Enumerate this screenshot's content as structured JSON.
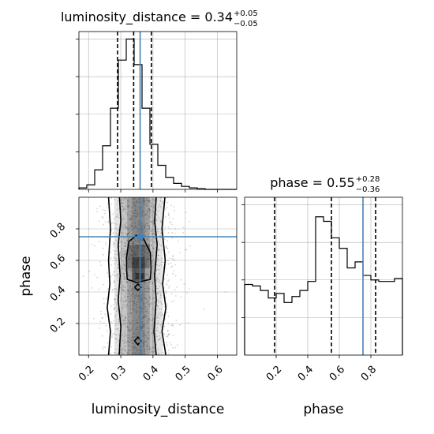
{
  "chart_data": {
    "type": "corner",
    "parameters": [
      "luminosity_distance",
      "phase"
    ],
    "truths": {
      "luminosity_distance": 0.36,
      "phase": 0.75
    },
    "colors": {
      "truth": "#4682b4",
      "hist": "#000000",
      "grid": "#b0b0b0",
      "samples": "#808080"
    },
    "panels": [
      {
        "id": "hist-luminosity_distance",
        "type": "step-histogram",
        "parameter": "luminosity_distance",
        "title": {
          "main": "luminosity_distance = 0.34",
          "sup": "+0.05",
          "sub": "−0.05"
        },
        "xlim": [
          0.17,
          0.66
        ],
        "ylim": [
          0,
          1.05
        ],
        "xticks": [
          0.2,
          0.3,
          0.4,
          0.5,
          0.6
        ],
        "bin_edges": [
          0.17,
          0.1945,
          0.219,
          0.2435,
          0.268,
          0.2925,
          0.317,
          0.3415,
          0.366,
          0.3905,
          0.415,
          0.4395,
          0.464,
          0.4885,
          0.513,
          0.5375,
          0.562,
          0.5865,
          0.611,
          0.6355,
          0.66
        ],
        "values": [
          0.01,
          0.03,
          0.13,
          0.29,
          0.54,
          0.86,
          1.0,
          0.83,
          0.54,
          0.3,
          0.16,
          0.08,
          0.04,
          0.02,
          0.01,
          0.005,
          0.0,
          0.0,
          0.0,
          0.0
        ],
        "quantiles": [
          0.29,
          0.34,
          0.395
        ],
        "truth": 0.36
      },
      {
        "id": "hist-phase",
        "type": "step-histogram",
        "parameter": "phase",
        "title": {
          "main": "phase = 0.55",
          "sup": "+0.28",
          "sub": "−0.36"
        },
        "xlim": [
          0.0,
          1.0
        ],
        "ylim": [
          0,
          1.05
        ],
        "xticks": [
          0.2,
          0.4,
          0.6,
          0.8
        ],
        "xticklabels": [
          "0.2",
          "0.4",
          "0.6",
          "0.8"
        ],
        "xlabel": "phase",
        "bin_edges": [
          0.0,
          0.05,
          0.1,
          0.15,
          0.2,
          0.25,
          0.3,
          0.35,
          0.4,
          0.45,
          0.5,
          0.55,
          0.6,
          0.65,
          0.7,
          0.75,
          0.8,
          0.85,
          0.9,
          0.95,
          1.0
        ],
        "values": [
          0.47,
          0.46,
          0.43,
          0.38,
          0.41,
          0.35,
          0.39,
          0.43,
          0.49,
          0.92,
          0.89,
          0.78,
          0.71,
          0.58,
          0.62,
          0.53,
          0.5,
          0.49,
          0.49,
          0.51
        ],
        "quantiles": [
          0.19,
          0.55,
          0.83
        ],
        "truth": 0.75
      },
      {
        "id": "scatter-2d",
        "type": "2d-density",
        "x_parameter": "luminosity_distance",
        "y_parameter": "phase",
        "xlim": [
          0.17,
          0.66
        ],
        "ylim": [
          0.0,
          1.0
        ],
        "xticks": [
          0.2,
          0.3,
          0.4,
          0.5,
          0.6
        ],
        "xticklabels": [
          "0.2",
          "0.3",
          "0.4",
          "0.5",
          "0.6"
        ],
        "yticks": [
          0.2,
          0.4,
          0.6,
          0.8
        ],
        "yticklabels": [
          "0.2",
          "0.4",
          "0.6",
          "0.8"
        ],
        "xlabel": "luminosity_distance",
        "ylabel": "phase",
        "truth": [
          0.36,
          0.75
        ],
        "contours": [
          [
            [
              0.262,
              0.0
            ],
            [
              0.268,
              0.15
            ],
            [
              0.258,
              0.3
            ],
            [
              0.266,
              0.45
            ],
            [
              0.262,
              0.6
            ],
            [
              0.268,
              0.8
            ],
            [
              0.262,
              1.0
            ]
          ],
          [
            [
              0.44,
              0.0
            ],
            [
              0.428,
              0.15
            ],
            [
              0.44,
              0.3
            ],
            [
              0.43,
              0.45
            ],
            [
              0.438,
              0.6
            ],
            [
              0.428,
              0.8
            ],
            [
              0.437,
              1.0
            ]
          ],
          [
            [
              0.295,
              0.0
            ],
            [
              0.3,
              0.18
            ],
            [
              0.292,
              0.35
            ],
            [
              0.298,
              0.5
            ],
            [
              0.292,
              0.7
            ],
            [
              0.3,
              0.85
            ],
            [
              0.296,
              1.0
            ]
          ],
          [
            [
              0.41,
              0.0
            ],
            [
              0.403,
              0.15
            ],
            [
              0.41,
              0.35
            ],
            [
              0.405,
              0.5
            ],
            [
              0.413,
              0.7
            ],
            [
              0.405,
              0.85
            ],
            [
              0.41,
              1.0
            ]
          ],
          [
            [
              0.318,
              0.55
            ],
            [
              0.32,
              0.48
            ],
            [
              0.35,
              0.46
            ],
            [
              0.392,
              0.48
            ],
            [
              0.394,
              0.55
            ],
            [
              0.392,
              0.65
            ],
            [
              0.37,
              0.74
            ],
            [
              0.35,
              0.76
            ],
            [
              0.325,
              0.72
            ],
            [
              0.318,
              0.62
            ],
            [
              0.318,
              0.55
            ]
          ],
          [
            [
              0.343,
              0.43
            ],
            [
              0.353,
              0.41
            ],
            [
              0.363,
              0.43
            ],
            [
              0.353,
              0.45
            ],
            [
              0.343,
              0.43
            ]
          ],
          [
            [
              0.343,
              0.09
            ],
            [
              0.353,
              0.065
            ],
            [
              0.363,
              0.09
            ],
            [
              0.353,
              0.115
            ],
            [
              0.343,
              0.09
            ]
          ]
        ]
      }
    ]
  }
}
